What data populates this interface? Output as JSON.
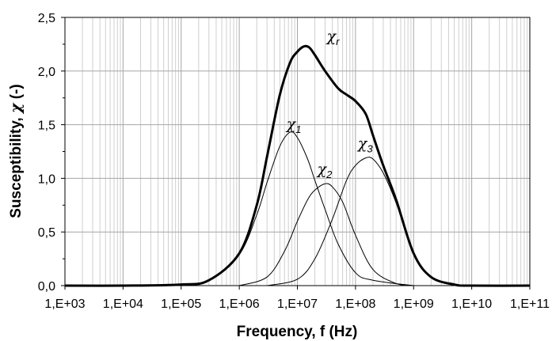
{
  "chart_data": {
    "type": "line",
    "xlabel": "Frequency, f (Hz)",
    "ylabel_text": "Susceptibility, ",
    "ylabel_symbol": "χ",
    "ylabel_unit": " (-)",
    "x_scale": "log",
    "xlim": [
      1000,
      100000000000
    ],
    "ylim": [
      0,
      2.5
    ],
    "x_ticks": [
      "1,E+03",
      "1,E+04",
      "1,E+05",
      "1,E+06",
      "1,E+07",
      "1,E+08",
      "1,E+09",
      "1,E+10",
      "1,E+11"
    ],
    "y_ticks": [
      "0,0",
      "0,5",
      "1,0",
      "1,5",
      "2,0",
      "2,5"
    ],
    "grid": true,
    "legend": "none",
    "series": [
      {
        "name": "χ1",
        "label_symbol": "χ",
        "label_sub": "1",
        "points": [
          [
            100000.0,
            0.01
          ],
          [
            300000.0,
            0.05
          ],
          [
            1000000.0,
            0.29
          ],
          [
            2000000.0,
            0.66
          ],
          [
            3000000.0,
            0.96
          ],
          [
            5000000.0,
            1.3
          ],
          [
            7500000.0,
            1.43
          ],
          [
            10000000.0,
            1.38
          ],
          [
            15000000.0,
            1.18
          ],
          [
            20000000.0,
            0.98
          ],
          [
            30000000.0,
            0.71
          ],
          [
            50000000.0,
            0.39
          ],
          [
            100000000.0,
            0.12
          ],
          [
            200000000.0,
            0.05
          ],
          [
            1000000000.0,
            0.0
          ]
        ]
      },
      {
        "name": "χ2",
        "label_symbol": "χ",
        "label_sub": "2",
        "points": [
          [
            1000000.0,
            0.0
          ],
          [
            3000000.0,
            0.08
          ],
          [
            6000000.0,
            0.32
          ],
          [
            10000000.0,
            0.6
          ],
          [
            15000000.0,
            0.8
          ],
          [
            20000000.0,
            0.89
          ],
          [
            30000000.0,
            0.95
          ],
          [
            40000000.0,
            0.92
          ],
          [
            60000000.0,
            0.78
          ],
          [
            100000000.0,
            0.47
          ],
          [
            200000000.0,
            0.15
          ],
          [
            500000000.0,
            0.02
          ],
          [
            1000000000.0,
            0.0
          ]
        ]
      },
      {
        "name": "χ3",
        "label_symbol": "χ",
        "label_sub": "3",
        "points": [
          [
            3000000.0,
            0.0
          ],
          [
            10000000.0,
            0.06
          ],
          [
            20000000.0,
            0.25
          ],
          [
            40000000.0,
            0.62
          ],
          [
            70000000.0,
            0.98
          ],
          [
            100000000.0,
            1.12
          ],
          [
            150000000.0,
            1.19
          ],
          [
            200000000.0,
            1.18
          ],
          [
            300000000.0,
            1.05
          ],
          [
            500000000.0,
            0.77
          ],
          [
            1000000000.0,
            0.3
          ],
          [
            2000000000.0,
            0.08
          ],
          [
            5000000000.0,
            0.01
          ],
          [
            10000000000.0,
            0.0
          ]
        ]
      },
      {
        "name": "χr",
        "label_symbol": "χ",
        "label_sub": "r",
        "points": [
          [
            1000.0,
            0.0
          ],
          [
            10000.0,
            0.0
          ],
          [
            100000.0,
            0.01
          ],
          [
            300000.0,
            0.05
          ],
          [
            1000000.0,
            0.3
          ],
          [
            2000000.0,
            0.75
          ],
          [
            3000000.0,
            1.2
          ],
          [
            5000000.0,
            1.78
          ],
          [
            7500000.0,
            2.08
          ],
          [
            10000000.0,
            2.18
          ],
          [
            13000000.0,
            2.23
          ],
          [
            16000000.0,
            2.22
          ],
          [
            20000000.0,
            2.15
          ],
          [
            30000000.0,
            2.0
          ],
          [
            50000000.0,
            1.84
          ],
          [
            70000000.0,
            1.78
          ],
          [
            100000000.0,
            1.72
          ],
          [
            150000000.0,
            1.6
          ],
          [
            200000000.0,
            1.4
          ],
          [
            300000000.0,
            1.12
          ],
          [
            500000000.0,
            0.8
          ],
          [
            1000000000.0,
            0.3
          ],
          [
            2000000000.0,
            0.08
          ],
          [
            5000000000.0,
            0.01
          ],
          [
            10000000000.0,
            0.0
          ],
          [
            100000000000.0,
            0.0
          ]
        ]
      }
    ]
  }
}
